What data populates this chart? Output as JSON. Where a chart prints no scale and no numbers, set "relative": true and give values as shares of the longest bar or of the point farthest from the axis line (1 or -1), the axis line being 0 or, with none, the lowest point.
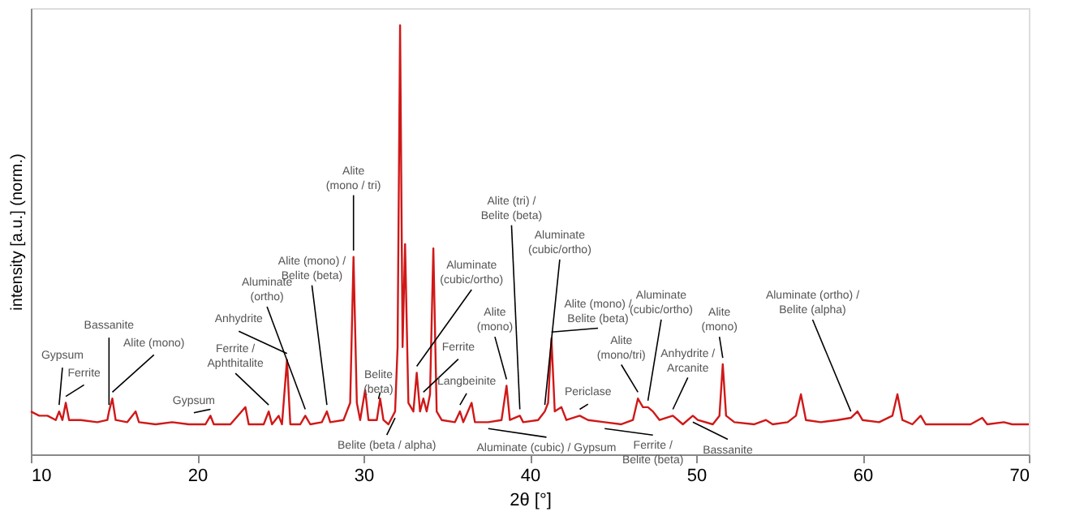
{
  "chart_data": {
    "type": "line",
    "relative": true,
    "xlabel": "2θ [°]",
    "ylabel": "intensity [a.u.] (norm.)",
    "xlim": [
      10,
      70
    ],
    "xticks": [
      10,
      20,
      30,
      40,
      50,
      60,
      70
    ],
    "grid": false,
    "marker": "none",
    "line_style": "solid",
    "x": [
      10.0,
      10.5,
      11.0,
      11.5,
      11.7,
      11.9,
      12.1,
      12.3,
      13,
      14,
      14.6,
      14.7,
      14.9,
      15.1,
      15.8,
      16.3,
      16.5,
      17.5,
      18.5,
      19.5,
      20.5,
      20.8,
      21.0,
      22,
      22.9,
      23.1,
      24.0,
      24.3,
      24.5,
      24.9,
      25.1,
      25.4,
      25.6,
      26.2,
      26.5,
      26.8,
      27.5,
      27.8,
      28.0,
      28.8,
      29.2,
      29.4,
      29.6,
      29.8,
      30.1,
      30.3,
      30.8,
      31.0,
      31.2,
      31.5,
      31.9,
      32.05,
      32.2,
      32.35,
      32.5,
      32.7,
      33.0,
      33.2,
      33.4,
      33.6,
      33.8,
      34.0,
      34.2,
      34.4,
      34.7,
      35.5,
      35.8,
      36.0,
      36.5,
      36.7,
      37.5,
      38.3,
      38.6,
      38.8,
      39.4,
      39.6,
      40.5,
      40.9,
      41.1,
      41.3,
      41.5,
      41.9,
      42.2,
      43.0,
      43.5,
      44.5,
      45.5,
      46.2,
      46.5,
      46.8,
      47.1,
      47.4,
      47.8,
      48.6,
      49.2,
      49.8,
      50.1,
      51.0,
      51.4,
      51.6,
      51.8,
      52.3,
      53.5,
      54.2,
      54.6,
      55.5,
      56.0,
      56.3,
      56.6,
      57.5,
      58.5,
      59.3,
      59.7,
      60.0,
      61.0,
      61.8,
      62.1,
      62.4,
      63.0,
      63.5,
      63.8,
      65,
      66.5,
      67.2,
      67.5,
      68.5,
      69,
      70
    ],
    "series": [
      {
        "color": "#d01818",
        "values": [
          0.1,
          0.09,
          0.09,
          0.08,
          0.1,
          0.08,
          0.12,
          0.08,
          0.08,
          0.075,
          0.08,
          0.1,
          0.13,
          0.08,
          0.075,
          0.1,
          0.075,
          0.07,
          0.075,
          0.07,
          0.07,
          0.09,
          0.07,
          0.07,
          0.11,
          0.07,
          0.07,
          0.1,
          0.07,
          0.09,
          0.07,
          0.22,
          0.07,
          0.07,
          0.09,
          0.07,
          0.075,
          0.1,
          0.075,
          0.08,
          0.12,
          0.46,
          0.12,
          0.08,
          0.15,
          0.08,
          0.08,
          0.13,
          0.08,
          0.07,
          0.1,
          0.25,
          1.0,
          0.25,
          0.49,
          0.12,
          0.1,
          0.19,
          0.1,
          0.13,
          0.1,
          0.14,
          0.48,
          0.1,
          0.08,
          0.075,
          0.1,
          0.075,
          0.12,
          0.075,
          0.075,
          0.08,
          0.16,
          0.08,
          0.09,
          0.075,
          0.08,
          0.1,
          0.12,
          0.27,
          0.1,
          0.11,
          0.08,
          0.09,
          0.08,
          0.075,
          0.07,
          0.08,
          0.13,
          0.11,
          0.11,
          0.1,
          0.08,
          0.09,
          0.07,
          0.09,
          0.08,
          0.07,
          0.09,
          0.21,
          0.09,
          0.075,
          0.07,
          0.08,
          0.07,
          0.075,
          0.09,
          0.14,
          0.08,
          0.075,
          0.08,
          0.085,
          0.1,
          0.08,
          0.075,
          0.09,
          0.14,
          0.08,
          0.07,
          0.09,
          0.07,
          0.07,
          0.07,
          0.085,
          0.07,
          0.075,
          0.07,
          0.07
        ]
      }
    ],
    "annotations": [
      {
        "text": "Gypsum",
        "x": 11.7,
        "y": 0.1
      },
      {
        "text": "Ferrite",
        "x": 12.1,
        "y": 0.12
      },
      {
        "text": "Bassanite",
        "x": 14.7,
        "y": 0.1
      },
      {
        "text": "Alite (mono)",
        "x": 14.9,
        "y": 0.13
      },
      {
        "text": "Gypsum",
        "x": 20.8,
        "y": 0.09
      },
      {
        "text": "Ferrite /\nAphthitalite",
        "x": 24.3,
        "y": 0.1
      },
      {
        "text": "Anhydrite",
        "x": 25.4,
        "y": 0.22
      },
      {
        "text": "Aluminate\n(ortho)",
        "x": 26.5,
        "y": 0.09
      },
      {
        "text": "Alite (mono) /\nBelite (beta)",
        "x": 27.8,
        "y": 0.1
      },
      {
        "text": "Alite\n(mono / tri)",
        "x": 29.4,
        "y": 0.46
      },
      {
        "text": "Belite\n(beta)",
        "x": 31.0,
        "y": 0.13
      },
      {
        "text": "Belite (beta / alpha)",
        "x": 31.9,
        "y": 0.1
      },
      {
        "text": "Aluminate\n(cubic/ortho)",
        "x": 33.2,
        "y": 0.19
      },
      {
        "text": "Ferrite",
        "x": 33.6,
        "y": 0.13
      },
      {
        "text": "Langbeinite",
        "x": 35.8,
        "y": 0.1
      },
      {
        "text": "Alite\n(mono)",
        "x": 38.6,
        "y": 0.16
      },
      {
        "text": "Alite (tri) /\nBelite (beta)",
        "x": 39.4,
        "y": 0.09
      },
      {
        "text": "Aluminate\n(cubic/ortho)",
        "x": 40.9,
        "y": 0.1
      },
      {
        "text": "Aluminate (cubic) / Gypsum",
        "x": 37.5,
        "y": 0.075
      },
      {
        "text": "Alite (mono) /\nBelite (beta)",
        "x": 41.3,
        "y": 0.27
      },
      {
        "text": "Periclase",
        "x": 43.0,
        "y": 0.09
      },
      {
        "text": "Ferrite /\nBelite (beta)",
        "x": 44.5,
        "y": 0.075
      },
      {
        "text": "Alite\n(mono/tri)",
        "x": 46.5,
        "y": 0.13
      },
      {
        "text": "Aluminate\n(cubic/ortho)",
        "x": 47.1,
        "y": 0.11
      },
      {
        "text": "Anhydrite /\nArcanite",
        "x": 48.6,
        "y": 0.09
      },
      {
        "text": "Bassanite",
        "x": 49.8,
        "y": 0.09
      },
      {
        "text": "Alite\n(mono)",
        "x": 51.6,
        "y": 0.21
      },
      {
        "text": "Aluminate (ortho) /\nBelite (alpha)",
        "x": 59.3,
        "y": 0.085
      }
    ]
  }
}
